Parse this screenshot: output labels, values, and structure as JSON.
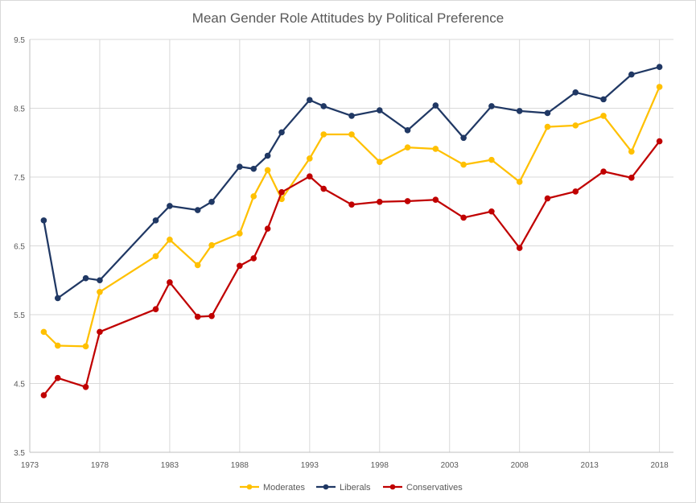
{
  "chart_data": {
    "type": "line",
    "title": "Mean Gender Role Attitudes by Political Preference",
    "xlabel": "",
    "ylabel": "",
    "xlim": [
      1973,
      2019
    ],
    "ylim": [
      3.5,
      9.5
    ],
    "x_ticks": [
      "1973",
      "1978",
      "1983",
      "1988",
      "1993",
      "1998",
      "2003",
      "2008",
      "2013",
      "2018"
    ],
    "y_ticks": [
      "3.5",
      "4.5",
      "5.5",
      "6.5",
      "7.5",
      "8.5",
      "9.5"
    ],
    "grid": "vertical and horizontal",
    "legend_position": "bottom",
    "series": [
      {
        "name": "Moderates",
        "color": "#FFC000",
        "points": [
          [
            1974,
            5.25
          ],
          [
            1975,
            5.05
          ],
          [
            1977,
            5.04
          ],
          [
            1978,
            5.83
          ],
          [
            1982,
            6.35
          ],
          [
            1983,
            6.59
          ],
          [
            1985,
            6.22
          ],
          [
            1986,
            6.51
          ],
          [
            1988,
            6.68
          ],
          [
            1989,
            7.22
          ],
          [
            1990,
            7.6
          ],
          [
            1991,
            7.18
          ],
          [
            1993,
            7.77
          ],
          [
            1994,
            8.12
          ],
          [
            1996,
            8.12
          ],
          [
            1998,
            7.72
          ],
          [
            2000,
            7.93
          ],
          [
            2002,
            7.91
          ],
          [
            2004,
            7.68
          ],
          [
            2006,
            7.75
          ],
          [
            2008,
            7.43
          ],
          [
            2010,
            8.23
          ],
          [
            2012,
            8.25
          ],
          [
            2014,
            8.39
          ],
          [
            2016,
            7.87
          ],
          [
            2018,
            8.81
          ]
        ]
      },
      {
        "name": "Liberals",
        "color": "#203864",
        "points": [
          [
            1974,
            6.87
          ],
          [
            1975,
            5.74
          ],
          [
            1977,
            6.03
          ],
          [
            1978,
            6.0
          ],
          [
            1982,
            6.87
          ],
          [
            1983,
            7.08
          ],
          [
            1985,
            7.02
          ],
          [
            1986,
            7.14
          ],
          [
            1988,
            7.65
          ],
          [
            1989,
            7.62
          ],
          [
            1990,
            7.81
          ],
          [
            1991,
            8.15
          ],
          [
            1993,
            8.62
          ],
          [
            1994,
            8.53
          ],
          [
            1996,
            8.39
          ],
          [
            1998,
            8.47
          ],
          [
            2000,
            8.18
          ],
          [
            2002,
            8.54
          ],
          [
            2004,
            8.07
          ],
          [
            2006,
            8.53
          ],
          [
            2008,
            8.46
          ],
          [
            2010,
            8.43
          ],
          [
            2012,
            8.73
          ],
          [
            2014,
            8.63
          ],
          [
            2016,
            8.99
          ],
          [
            2018,
            9.1
          ]
        ]
      },
      {
        "name": "Conservatives",
        "color": "#C00000",
        "points": [
          [
            1974,
            4.33
          ],
          [
            1975,
            4.58
          ],
          [
            1977,
            4.45
          ],
          [
            1978,
            5.25
          ],
          [
            1982,
            5.58
          ],
          [
            1983,
            5.97
          ],
          [
            1985,
            5.47
          ],
          [
            1986,
            5.48
          ],
          [
            1988,
            6.21
          ],
          [
            1989,
            6.32
          ],
          [
            1990,
            6.75
          ],
          [
            1991,
            7.28
          ],
          [
            1993,
            7.51
          ],
          [
            1994,
            7.33
          ],
          [
            1996,
            7.1
          ],
          [
            1998,
            7.14
          ],
          [
            2000,
            7.15
          ],
          [
            2002,
            7.17
          ],
          [
            2004,
            6.91
          ],
          [
            2006,
            7.0
          ],
          [
            2008,
            6.47
          ],
          [
            2010,
            7.19
          ],
          [
            2012,
            7.29
          ],
          [
            2014,
            7.58
          ],
          [
            2016,
            7.49
          ],
          [
            2018,
            8.02
          ]
        ]
      }
    ]
  }
}
